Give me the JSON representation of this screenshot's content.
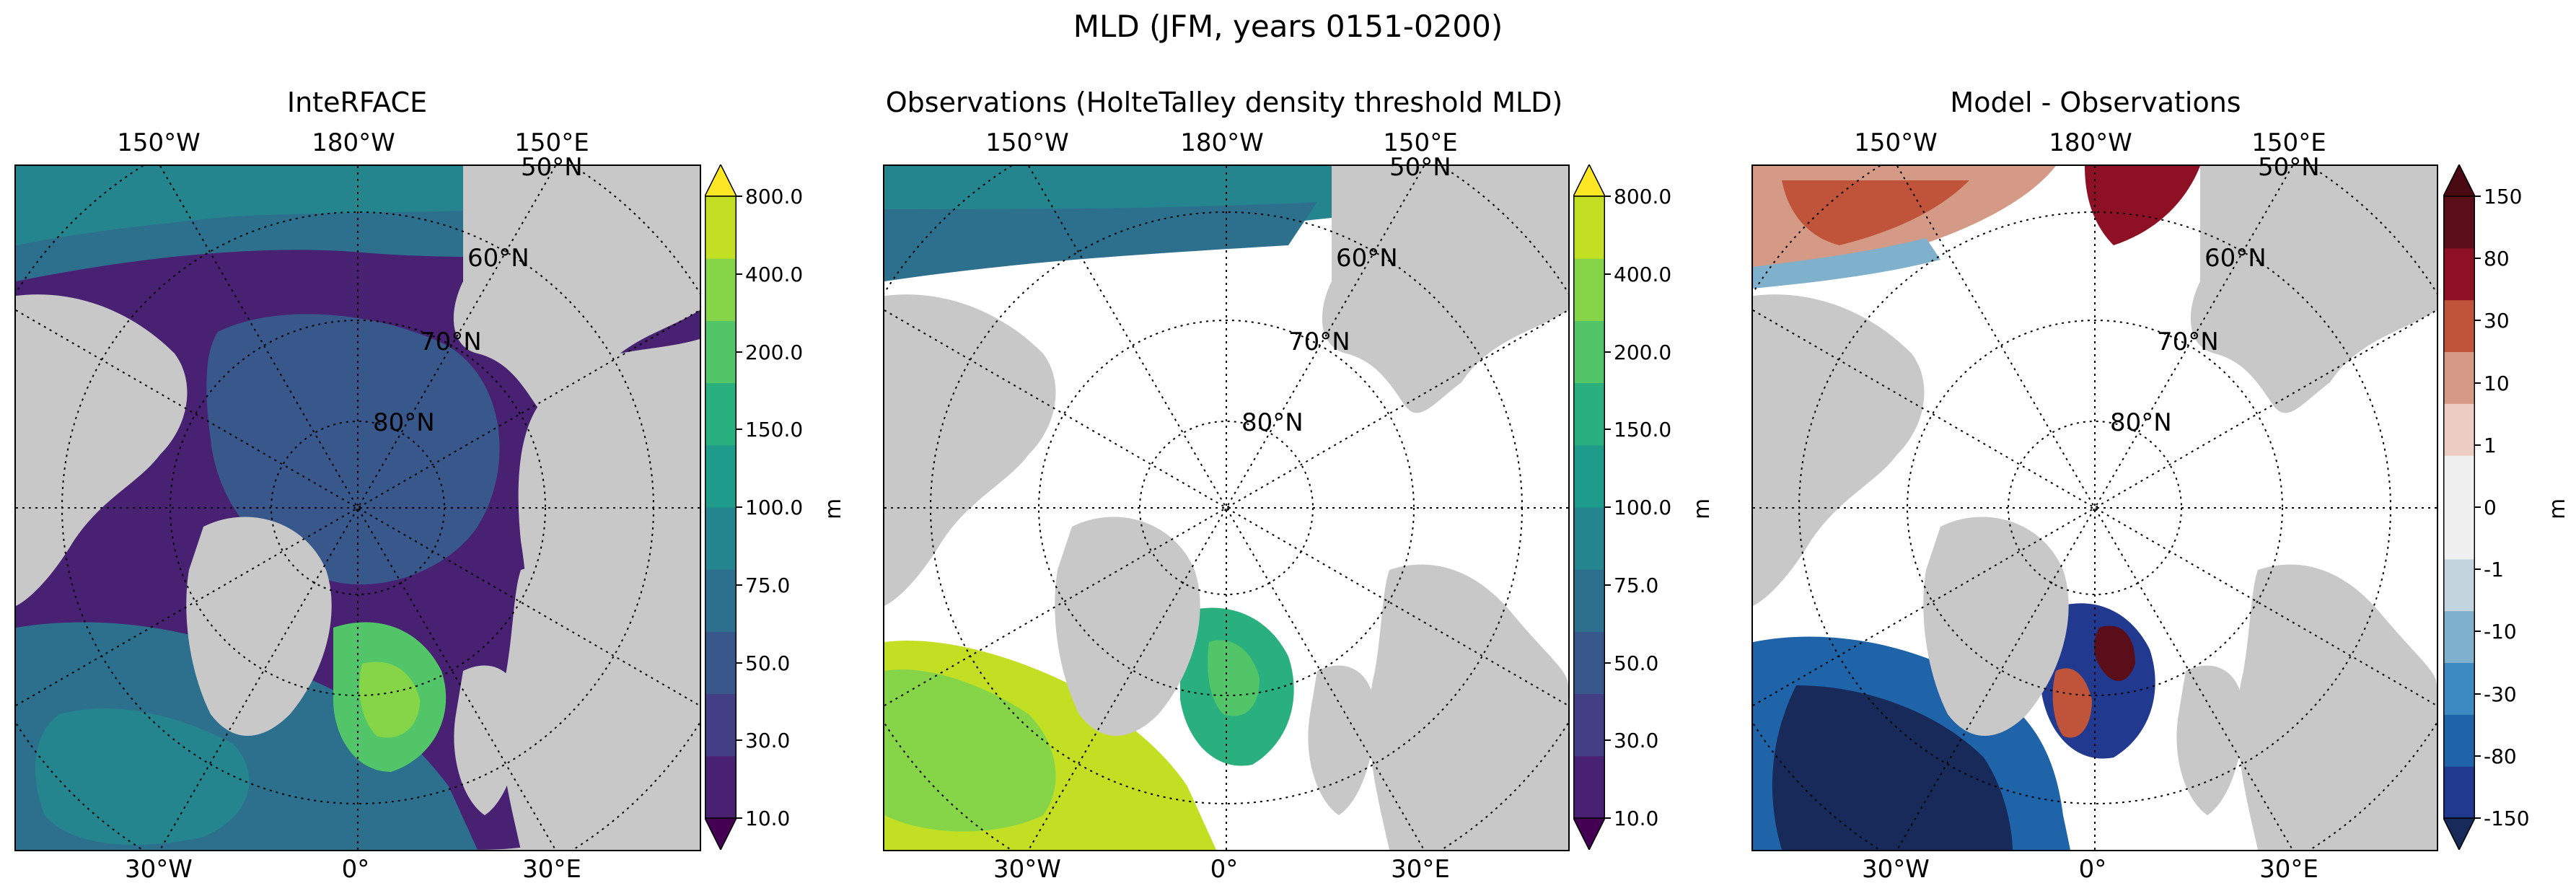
{
  "title": "MLD (JFM, years 0151-0200)",
  "panels": [
    {
      "title": "InteRFACE",
      "colorbar": {
        "unit": "m",
        "ticks": [
          "10.0",
          "30.0",
          "50.0",
          "75.0",
          "100.0",
          "150.0",
          "200.0",
          "400.0",
          "800.0"
        ],
        "colors": [
          "#482173",
          "#433e85",
          "#38588c",
          "#2d708e",
          "#25858e",
          "#1e9b8a",
          "#2ab07f",
          "#52c569",
          "#86d549",
          "#c2df23"
        ],
        "extend_low": "#440154",
        "extend_high": "#fde725"
      }
    },
    {
      "title": "Observations (HolteTalley density threshold MLD)",
      "colorbar": {
        "unit": "m",
        "ticks": [
          "10.0",
          "30.0",
          "50.0",
          "75.0",
          "100.0",
          "150.0",
          "200.0",
          "400.0",
          "800.0"
        ],
        "colors": [
          "#482173",
          "#433e85",
          "#38588c",
          "#2d708e",
          "#25858e",
          "#1e9b8a",
          "#2ab07f",
          "#52c569",
          "#86d549",
          "#c2df23"
        ],
        "extend_low": "#440154",
        "extend_high": "#fde725"
      }
    },
    {
      "title": "Model - Observations",
      "colorbar": {
        "unit": "m",
        "ticks": [
          "-150",
          "-80",
          "-30",
          "-10",
          "-1",
          "0",
          "1",
          "10",
          "30",
          "80",
          "150"
        ],
        "colors": [
          "#213a8f",
          "#1f63a8",
          "#3b8bc2",
          "#7fb0cc",
          "#c4d4de",
          "#f0f0f0",
          "#f0f0f0",
          "#ebcdc4",
          "#d49a85",
          "#c0543a",
          "#8e1024",
          "#5a0e1a"
        ],
        "extend_low": "#182a5a",
        "extend_high": "#4a0a14"
      }
    }
  ],
  "axes": {
    "lon_top": [
      "150°W",
      "180°W",
      "150°E"
    ],
    "lon_bottom": [
      "30°W",
      "0°",
      "30°E"
    ],
    "lat": [
      "50°N",
      "60°N",
      "70°N",
      "80°N"
    ]
  }
}
